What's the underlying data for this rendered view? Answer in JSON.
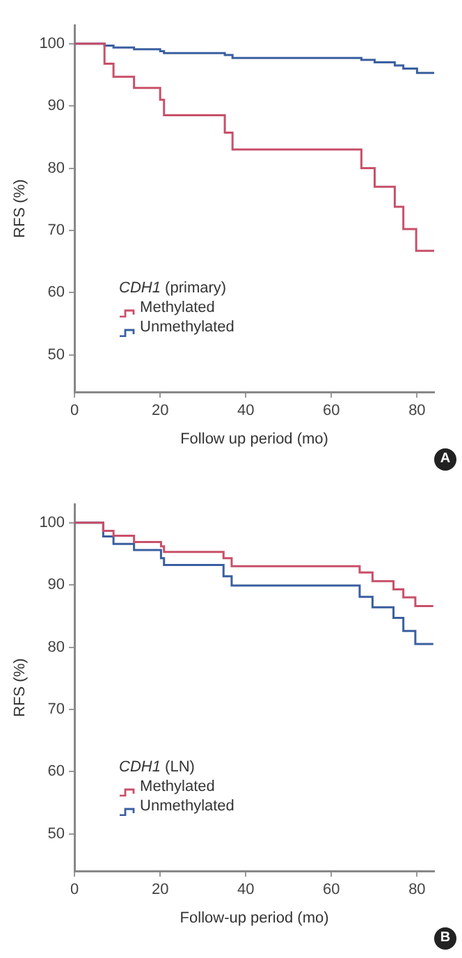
{
  "chart_data": [
    {
      "type": "step",
      "xlabel": "Follow up period (mo)",
      "ylabel": "RFS (%)",
      "legend_title": "CDH1 (primary)",
      "legend": "bottom left",
      "grid": false,
      "annotations": [
        "A"
      ],
      "xlim": [
        0,
        84
      ],
      "xticks": [
        0,
        20,
        40,
        60,
        80
      ],
      "ylim": [
        44,
        103
      ],
      "yticks": [
        50,
        60,
        70,
        80,
        90,
        100
      ],
      "series": [
        {
          "name": "Methylated",
          "color": "#c8506a",
          "x": [
            0,
            7,
            9.1,
            13.9,
            20,
            20.9,
            35.1,
            36.9,
            67,
            70.1,
            74.8,
            76.8,
            79.8,
            84
          ],
          "values": [
            100,
            96.8,
            94.7,
            92.9,
            91,
            88.5,
            85.7,
            83,
            80,
            77,
            73.8,
            70.2,
            66.7,
            66.7
          ]
        },
        {
          "name": "Unmethylated",
          "color": "#3a5fa0",
          "x": [
            0,
            7,
            9.1,
            13.9,
            20,
            20.9,
            35.1,
            36.9,
            67,
            70.1,
            74.8,
            76.8,
            80,
            84
          ],
          "values": [
            100,
            99.7,
            99.4,
            99.1,
            98.8,
            98.5,
            98.2,
            97.7,
            97.4,
            97,
            96.5,
            96,
            95.3,
            95.3
          ]
        }
      ]
    },
    {
      "type": "step",
      "xlabel": "Follow-up period (mo)",
      "ylabel": "RFS (%)",
      "legend_title": "CDH1 (LN)",
      "legend": "bottom left",
      "grid": false,
      "annotations": [
        "B"
      ],
      "xlim": [
        0,
        84
      ],
      "xticks": [
        0,
        20,
        40,
        60,
        80
      ],
      "ylim": [
        44,
        103
      ],
      "yticks": [
        50,
        60,
        70,
        80,
        90,
        100
      ],
      "series": [
        {
          "name": "Methylated",
          "color": "#c8506a",
          "x": [
            0,
            6.7,
            9.1,
            13.9,
            20.2,
            20.9,
            34.8,
            36.7,
            66.6,
            69.6,
            74.5,
            76.8,
            79.6,
            83.8
          ],
          "values": [
            100,
            98.7,
            97.9,
            96.9,
            96.2,
            95.3,
            94.3,
            93,
            92,
            90.6,
            89.3,
            88,
            86.6,
            86.6
          ]
        },
        {
          "name": "Unmethylated",
          "color": "#3a5fa0",
          "x": [
            0,
            6.7,
            9.1,
            13.9,
            20.2,
            20.9,
            34.8,
            36.7,
            66.6,
            69.6,
            74.5,
            76.8,
            79.6,
            83.8
          ],
          "values": [
            100,
            97.8,
            96.6,
            95.6,
            94.3,
            93.2,
            91.4,
            89.9,
            88.1,
            86.4,
            84.7,
            82.6,
            80.5,
            80.5
          ]
        }
      ]
    }
  ]
}
